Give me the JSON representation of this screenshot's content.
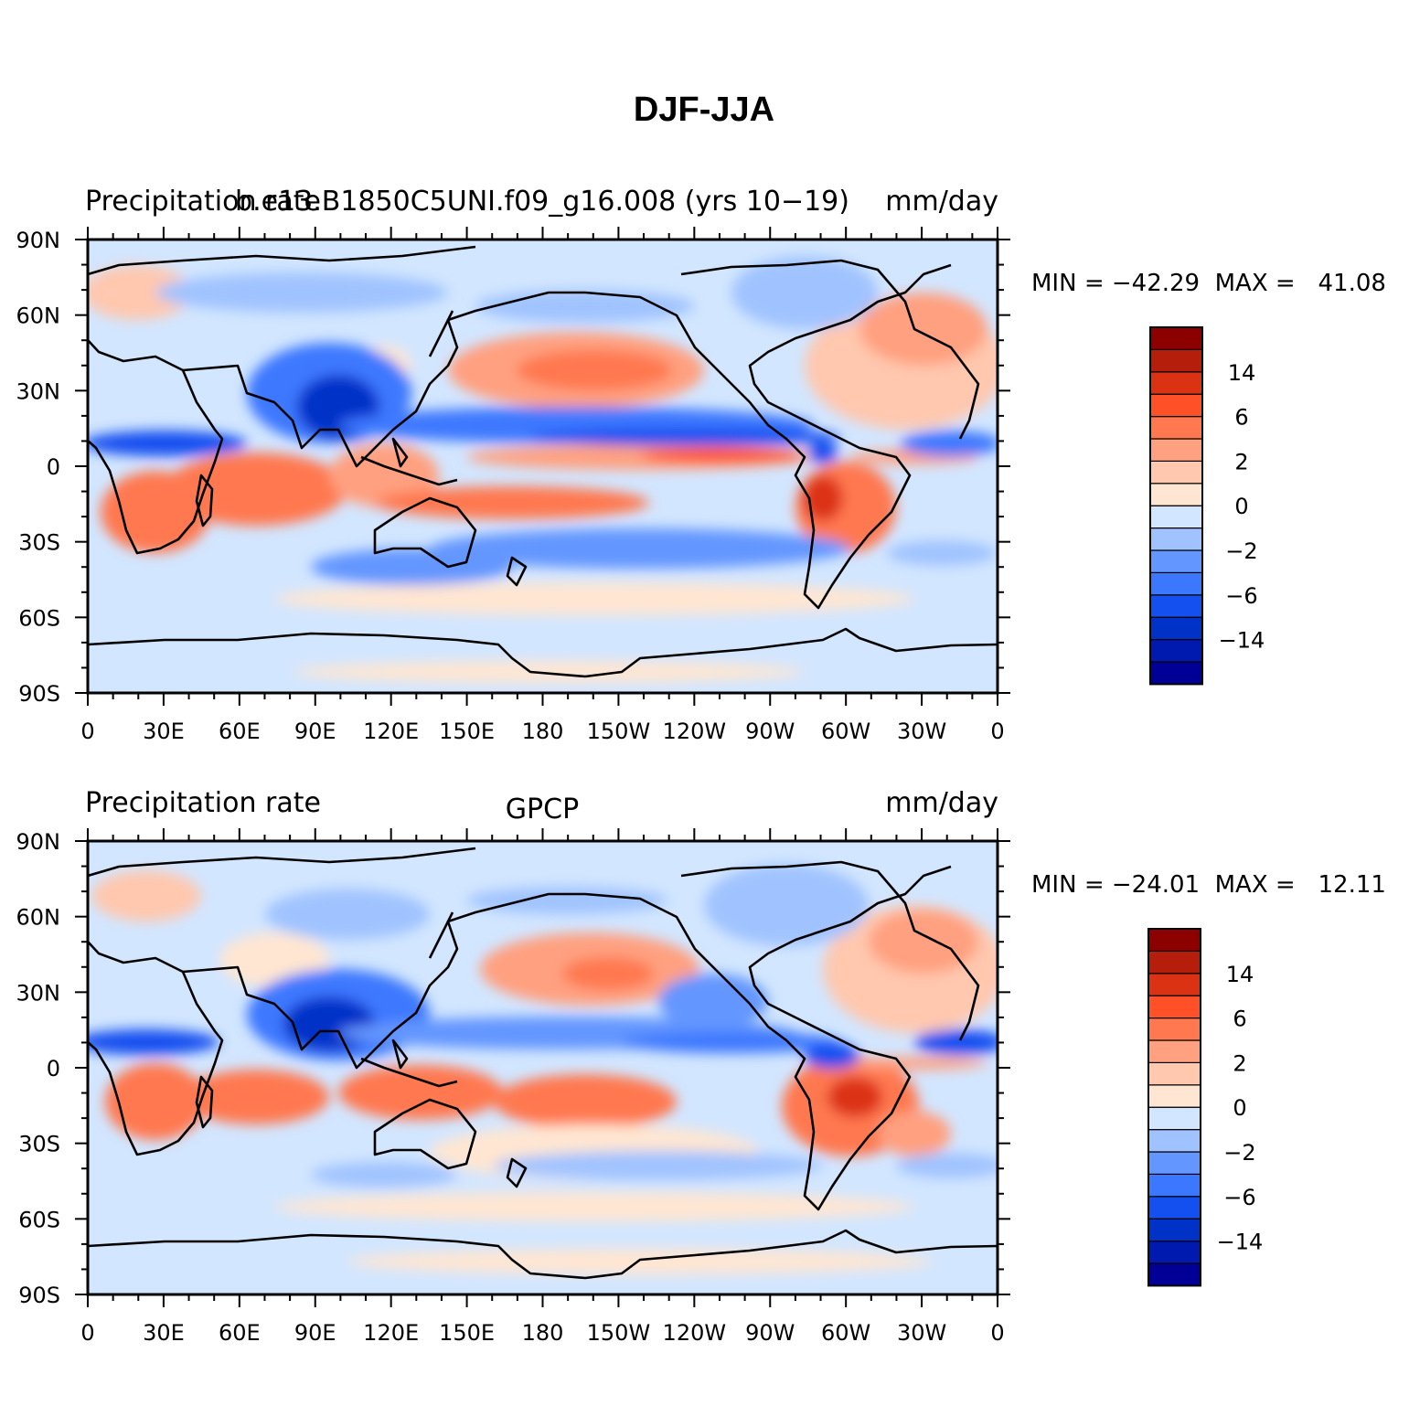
{
  "figure_title": "DJF-JJA",
  "colors": {
    "levels": [
      "#000096",
      "#0019af",
      "#0032c8",
      "#1450f0",
      "#3c78ff",
      "#6496ff",
      "#a0c3ff",
      "#d2e6ff",
      "#ffe6d2",
      "#ffc8af",
      "#ffa080",
      "#ff7850",
      "#ff5028",
      "#dc3214",
      "#b41e0a",
      "#8c0000"
    ],
    "coast": "#000000"
  },
  "colorbar_labels": [
    "14",
    "6",
    "2",
    "0",
    "−2",
    "−6",
    "−14"
  ],
  "panels": [
    {
      "left_title": "Precipitation rate",
      "center_title": "b.e13.B1850C5UNI.f09_g16.008 (yrs 10−19)",
      "right_title": "mm/day",
      "stats": "MIN = −42.29  MAX =   41.08",
      "lat_labels": [
        "90N",
        "60N",
        "30N",
        "0",
        "30S",
        "60S",
        "90S"
      ],
      "lon_labels": [
        "0",
        "30E",
        "60E",
        "90E",
        "120E",
        "150E",
        "180",
        "150W",
        "120W",
        "90W",
        "60W",
        "30W",
        "0"
      ]
    },
    {
      "left_title": "Precipitation rate",
      "center_title": "GPCP",
      "right_title": "mm/day",
      "stats": "MIN = −24.01  MAX =   12.11",
      "lat_labels": [
        "90N",
        "60N",
        "30N",
        "0",
        "30S",
        "60S",
        "90S"
      ],
      "lon_labels": [
        "0",
        "30E",
        "60E",
        "90E",
        "120E",
        "150E",
        "180",
        "150W",
        "120W",
        "90W",
        "60W",
        "30W",
        "0"
      ]
    }
  ]
}
